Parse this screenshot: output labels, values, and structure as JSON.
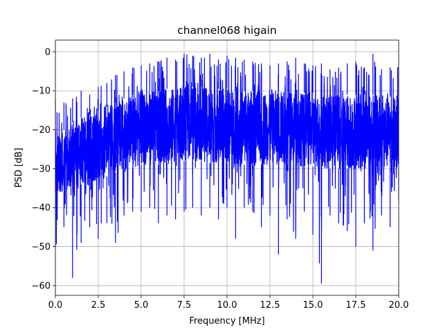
{
  "chart_data": {
    "type": "line",
    "title": "channel068 higain",
    "xlabel": "Frequency [MHz]",
    "ylabel": "PSD [dB]",
    "xlim": [
      0,
      20
    ],
    "ylim": [
      -62.5,
      3
    ],
    "grid": true,
    "x_ticks": [
      0,
      2.5,
      5,
      7.5,
      10,
      12.5,
      15,
      17.5,
      20
    ],
    "x_tick_labels": [
      "0.0",
      "2.5",
      "5.0",
      "7.5",
      "10.0",
      "12.5",
      "15.0",
      "17.5",
      "20.0"
    ],
    "y_ticks": [
      0,
      -10,
      -20,
      -30,
      -40,
      -50,
      -60
    ],
    "y_tick_labels": [
      "0",
      "−10",
      "−20",
      "−30",
      "−40",
      "−50",
      "−60"
    ],
    "series": [
      {
        "color": "#0000ff",
        "envelope": {
          "x": [
            0,
            0.5,
            1,
            1.5,
            2,
            2.5,
            3,
            3.5,
            4,
            4.5,
            5,
            5.5,
            6,
            6.5,
            7,
            7.5,
            8,
            8.5,
            9,
            9.5,
            10,
            10.5,
            11,
            11.5,
            12,
            12.5,
            13,
            13.5,
            14,
            14.5,
            15,
            15.5,
            16,
            16.5,
            17,
            17.5,
            18,
            18.5,
            19,
            19.5,
            20
          ],
          "upper": [
            -12,
            -13,
            -12,
            -10,
            -11,
            -9,
            -8,
            -6,
            -5,
            -4,
            -3.5,
            -3,
            -2.5,
            -1.5,
            -2,
            -0.5,
            -1,
            -1.5,
            -0.5,
            -2,
            -1,
            -1.5,
            -2,
            -2.5,
            -3,
            -3.5,
            -3,
            -2.5,
            -1.5,
            -3,
            -3.5,
            -3,
            -4.5,
            -4,
            -3,
            -2.5,
            -4,
            -0.5,
            -4.5,
            -4,
            -4
          ],
          "band_top": [
            -20,
            -20,
            -18,
            -17,
            -16,
            -15,
            -14,
            -13,
            -12,
            -11,
            -10,
            -10,
            -10,
            -9.5,
            -9.5,
            -9,
            -9,
            -9,
            -9.5,
            -9.5,
            -9.5,
            -10,
            -10,
            -10,
            -10,
            -10,
            -10,
            -10,
            -10,
            -10.5,
            -10.5,
            -11,
            -11,
            -11,
            -11,
            -11,
            -11,
            -11,
            -11.5,
            -11.5,
            -11.5
          ],
          "band_bottom": [
            -36,
            -36,
            -35,
            -34,
            -34,
            -33,
            -32,
            -31,
            -30,
            -30,
            -29,
            -29,
            -29,
            -28.5,
            -28.5,
            -28,
            -28,
            -28,
            -28.5,
            -28.5,
            -28.5,
            -29,
            -29,
            -29,
            -29,
            -29,
            -29,
            -29,
            -29,
            -29.5,
            -29.5,
            -30,
            -30,
            -30,
            -30,
            -30,
            -30,
            -30,
            -30,
            -30,
            -30
          ],
          "lower": [
            -50,
            -45,
            -58,
            -49,
            -45,
            -48,
            -44,
            -49,
            -42,
            -41,
            -41,
            -40,
            -44,
            -42,
            -43,
            -41,
            -40,
            -42,
            -40,
            -43,
            -40,
            -48,
            -40,
            -41,
            -45,
            -42,
            -52,
            -43,
            -48,
            -41,
            -47,
            -59.5,
            -42,
            -44,
            -46,
            -50,
            -44,
            -51,
            -42,
            -45,
            -38
          ]
        }
      }
    ]
  }
}
